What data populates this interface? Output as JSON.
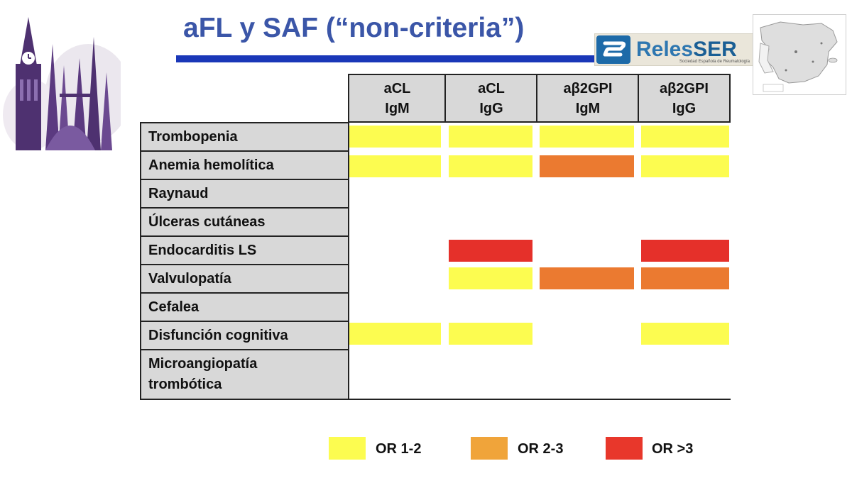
{
  "title": "aFL y SAF (“non-criteria”)",
  "logo": {
    "name": "RelesSER",
    "name_first": "Reles",
    "name_second": "SER",
    "subtitle": "Sociedad Española de Reumatología"
  },
  "columns": [
    {
      "line1": "aCL",
      "line2": "IgM"
    },
    {
      "line1": "aCL",
      "line2": "IgG"
    },
    {
      "line1": "aβ2GPI",
      "line2": "IgM"
    },
    {
      "line1": "aβ2GPI",
      "line2": "IgG"
    }
  ],
  "rows": [
    {
      "label": "Trombopenia",
      "cells": [
        "OR 1-2",
        "OR 1-2",
        "OR 1-2",
        "OR 1-2"
      ]
    },
    {
      "label": "Anemia hemolítica",
      "cells": [
        "OR 1-2",
        "OR 1-2",
        "OR 2-3",
        "OR 1-2"
      ]
    },
    {
      "label": "Raynaud",
      "cells": [
        "",
        "",
        "",
        ""
      ]
    },
    {
      "label": "Úlceras cutáneas",
      "cells": [
        "",
        "",
        "",
        ""
      ]
    },
    {
      "label": "Endocarditis LS",
      "cells": [
        "",
        "OR >3",
        "",
        "OR >3"
      ]
    },
    {
      "label": "Valvulopatía",
      "cells": [
        "",
        "OR 1-2",
        "OR 2-3",
        "OR 2-3"
      ]
    },
    {
      "label": "Cefalea",
      "cells": [
        "",
        "",
        "",
        ""
      ]
    },
    {
      "label": "Disfunción cognitiva",
      "cells": [
        "OR 1-2",
        "OR 1-2",
        "",
        "OR 1-2"
      ]
    },
    {
      "label_line1": "Microangiopatía",
      "label_line2": "trombótica",
      "cells": [
        "",
        "",
        "",
        ""
      ]
    }
  ],
  "legend": [
    {
      "label": "OR 1-2",
      "color": "#fcfc50"
    },
    {
      "label": "OR 2-3",
      "color": "#f0a43a"
    },
    {
      "label": "OR >3",
      "color": "#e8372b"
    }
  ],
  "cell_colors": {
    "OR 1-2": "#fcfc50",
    "OR 2-3": "#eb7a30",
    "OR >3": "#e5302a"
  }
}
